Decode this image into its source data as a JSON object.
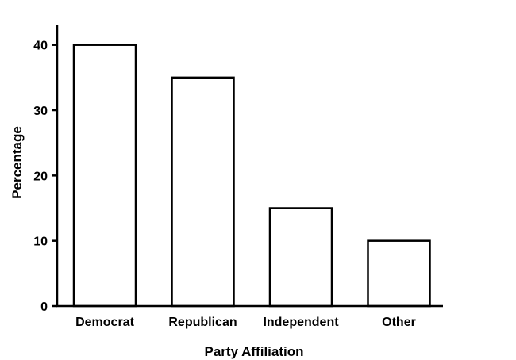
{
  "chart_data": {
    "type": "bar",
    "title": "",
    "xlabel": "Party Affiliation",
    "ylabel": "Percentage",
    "categories": [
      "Democrat",
      "Republican",
      "Independent",
      "Other"
    ],
    "values": [
      40,
      35,
      15,
      10
    ],
    "ylim": [
      0,
      43
    ],
    "yticks": [
      0,
      10,
      20,
      30,
      40
    ],
    "grid": false,
    "bar_fill": "#ffffff",
    "bar_stroke": "#000000"
  }
}
